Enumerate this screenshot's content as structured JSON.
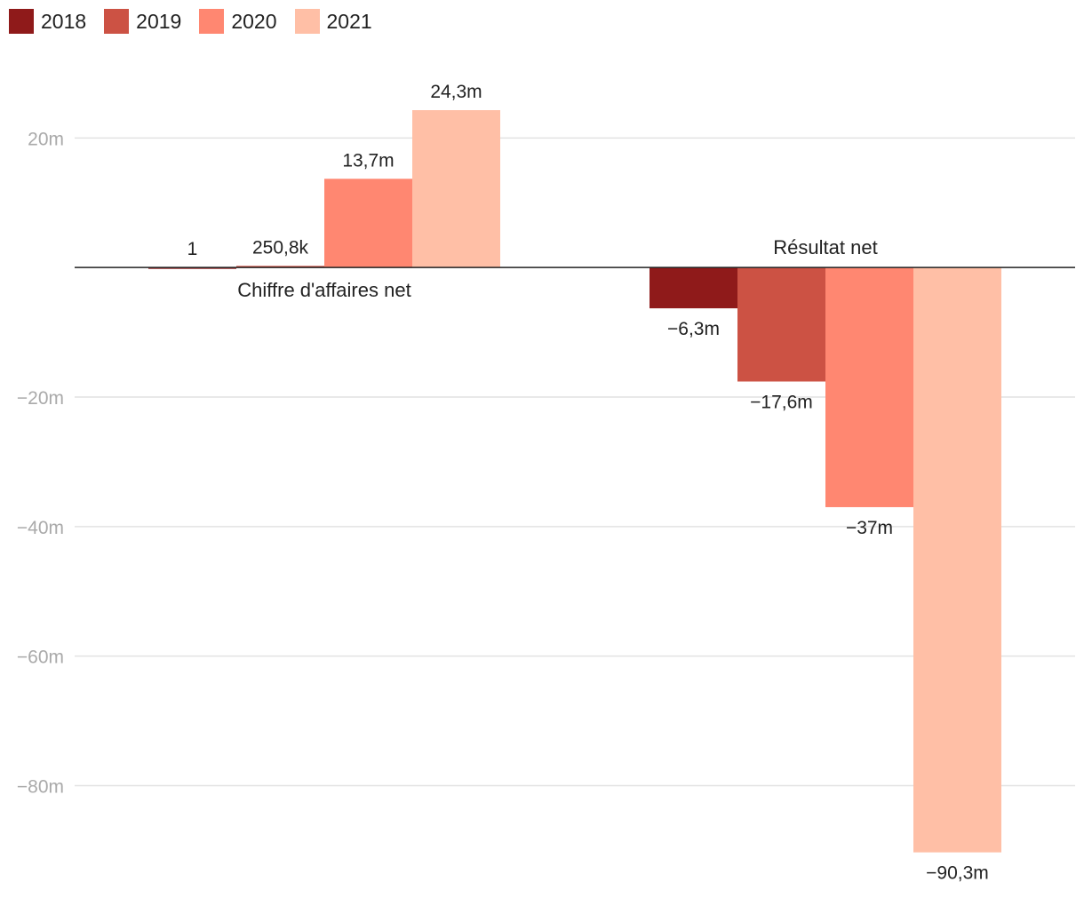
{
  "chart_data": {
    "type": "bar",
    "categories": [
      "Chiffre d'affaires net",
      "Résultat net"
    ],
    "series": [
      {
        "name": "2018",
        "color": "#8f1a1a",
        "values": [
          1e-06,
          -6.3
        ],
        "labels": [
          "1",
          "−6,3m"
        ]
      },
      {
        "name": "2019",
        "color": "#cc5244",
        "values": [
          0.2508,
          -17.6
        ],
        "labels": [
          "250,8k",
          "−17,6m"
        ]
      },
      {
        "name": "2020",
        "color": "#ff8771",
        "values": [
          13.7,
          -37
        ],
        "labels": [
          "13,7m",
          "−37m"
        ]
      },
      {
        "name": "2021",
        "color": "#ffbfa6",
        "values": [
          24.3,
          -90.3
        ],
        "labels": [
          "24,3m",
          "−90,3m"
        ]
      }
    ],
    "ylim": [
      -92,
      24.3
    ],
    "yticks": [
      {
        "value": 20,
        "label": "20m"
      },
      {
        "value": -20,
        "label": "−20m"
      },
      {
        "value": -40,
        "label": "−40m"
      },
      {
        "value": -60,
        "label": "−60m"
      },
      {
        "value": -80,
        "label": "−80m"
      }
    ],
    "legend": "top-left",
    "grid": true
  }
}
